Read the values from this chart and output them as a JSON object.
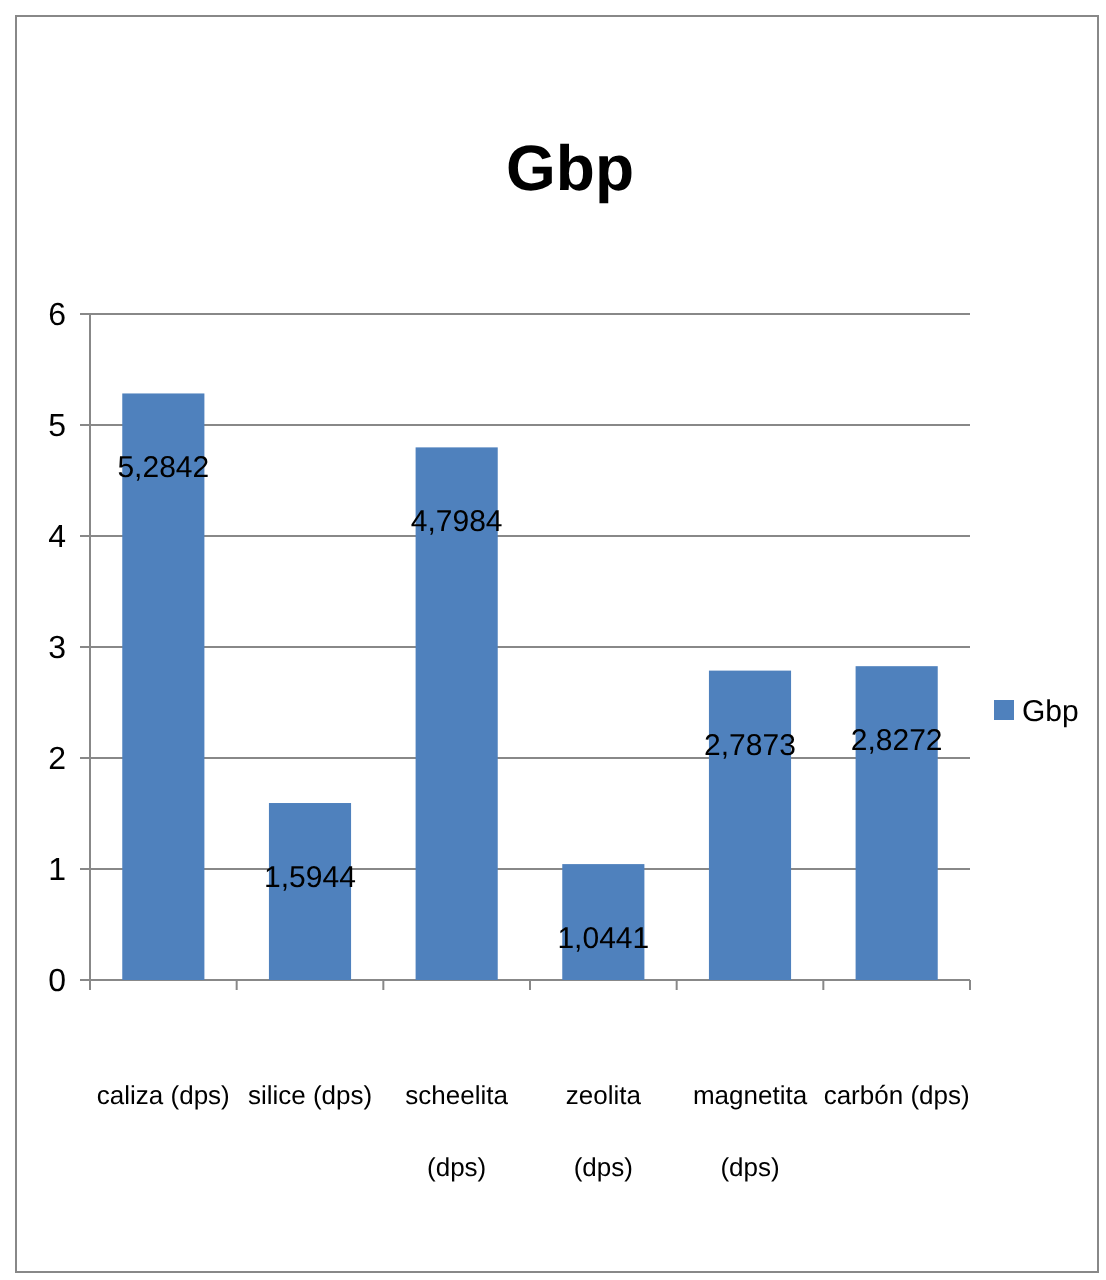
{
  "chart_data": {
    "type": "bar",
    "title": "Gbp",
    "categories": [
      "caliza (dps)",
      "silice (dps)",
      "scheelita (dps)",
      "zeolita (dps)",
      "magnetita (dps)",
      "carbón (dps)"
    ],
    "series": [
      {
        "name": "Gbp",
        "color": "#4f81bd",
        "values": [
          5.2842,
          1.5944,
          4.7984,
          1.0441,
          2.7873,
          2.8272
        ],
        "value_labels": [
          "5,2842",
          "1,5944",
          "4,7984",
          "1,0441",
          "2,7873",
          "2,8272"
        ]
      }
    ],
    "ylim": [
      0,
      6
    ],
    "yticks": [
      0,
      1,
      2,
      3,
      4,
      5,
      6
    ],
    "grid": "y",
    "legend": "right"
  }
}
